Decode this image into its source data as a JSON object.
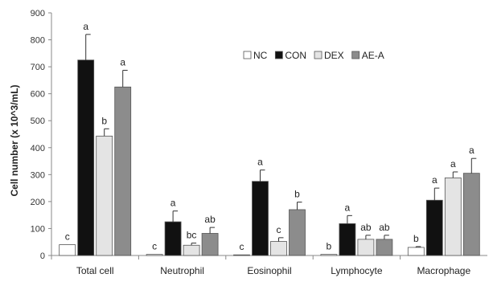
{
  "chart_data": {
    "type": "bar",
    "title": "",
    "xlabel": "",
    "ylabel": "Cell number (x 10^3/mL)",
    "ylim": [
      0,
      900
    ],
    "yticks": [
      0,
      100,
      200,
      300,
      400,
      500,
      600,
      700,
      800,
      900
    ],
    "grid": false,
    "legend_position": "top-right",
    "categories": [
      "Total cell",
      "Neutrophil",
      "Eosinophil",
      "Lymphocyte",
      "Macrophage"
    ],
    "series": [
      {
        "name": "NC",
        "color": "#ffffff",
        "values": [
          40,
          4,
          2,
          4,
          30
        ],
        "errors": [
          0,
          0,
          0,
          0,
          3
        ],
        "labels": [
          "c",
          "c",
          "c",
          "b",
          "b"
        ]
      },
      {
        "name": "CON",
        "color": "#111111",
        "values": [
          725,
          125,
          275,
          118,
          205
        ],
        "errors": [
          95,
          40,
          42,
          30,
          45
        ],
        "labels": [
          "a",
          "a",
          "a",
          "a",
          "a"
        ]
      },
      {
        "name": "DEX",
        "color": "#e4e4e4",
        "values": [
          443,
          38,
          52,
          60,
          288
        ],
        "errors": [
          27,
          8,
          14,
          15,
          22
        ],
        "labels": [
          "b",
          "bc",
          "c",
          "ab",
          "a"
        ]
      },
      {
        "name": "AE-A",
        "color": "#8c8c8c",
        "values": [
          625,
          82,
          170,
          60,
          305
        ],
        "errors": [
          62,
          22,
          28,
          15,
          55
        ],
        "labels": [
          "a",
          "ab",
          "b",
          "ab",
          "a"
        ]
      }
    ]
  }
}
